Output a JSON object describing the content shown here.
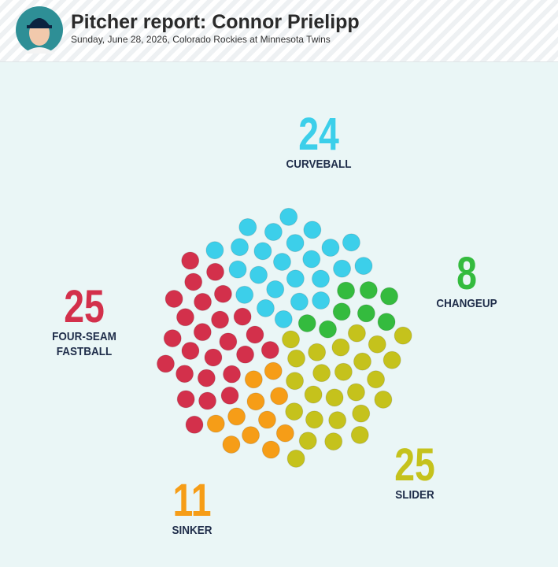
{
  "chart_data": {
    "type": "dots",
    "title": "Pitcher report: Connor Prielipp",
    "subtitle": "Sunday, June 28, 2026, Colorado Rockies at Minnesota Twins",
    "categories": [
      "CURVEBALL",
      "CHANGEUP",
      "SLIDER",
      "SINKER",
      "FOUR-SEAM FASTBALL"
    ],
    "values": [
      24,
      8,
      25,
      11,
      25
    ],
    "colors": [
      "#3ccfea",
      "#34bb3e",
      "#c5c21c",
      "#f69d17",
      "#d3304b"
    ]
  }
}
